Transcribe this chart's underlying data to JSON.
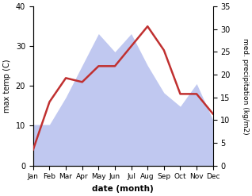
{
  "months": [
    "Jan",
    "Feb",
    "Mar",
    "Apr",
    "May",
    "Jun",
    "Jul",
    "Aug",
    "Sep",
    "Oct",
    "Nov",
    "Dec"
  ],
  "month_indices": [
    0,
    1,
    2,
    3,
    4,
    5,
    6,
    7,
    8,
    9,
    10,
    11
  ],
  "temperature": [
    4,
    16,
    22,
    21,
    25,
    25,
    30,
    35,
    29,
    18,
    18,
    13
  ],
  "precipitation": [
    9,
    9,
    15,
    22,
    29,
    25,
    29,
    22,
    16,
    13,
    18,
    10
  ],
  "temp_color": "#c03030",
  "precip_color": "#c0c8f0",
  "left_label": "max temp (C)",
  "right_label": "med. precipitation (kg/m2)",
  "xlabel": "date (month)",
  "ylim_left": [
    0,
    40
  ],
  "ylim_right": [
    0,
    35
  ],
  "left_ticks": [
    0,
    10,
    20,
    30,
    40
  ],
  "right_ticks": [
    0,
    5,
    10,
    15,
    20,
    25,
    30,
    35
  ],
  "figsize": [
    3.18,
    2.47
  ],
  "dpi": 100
}
